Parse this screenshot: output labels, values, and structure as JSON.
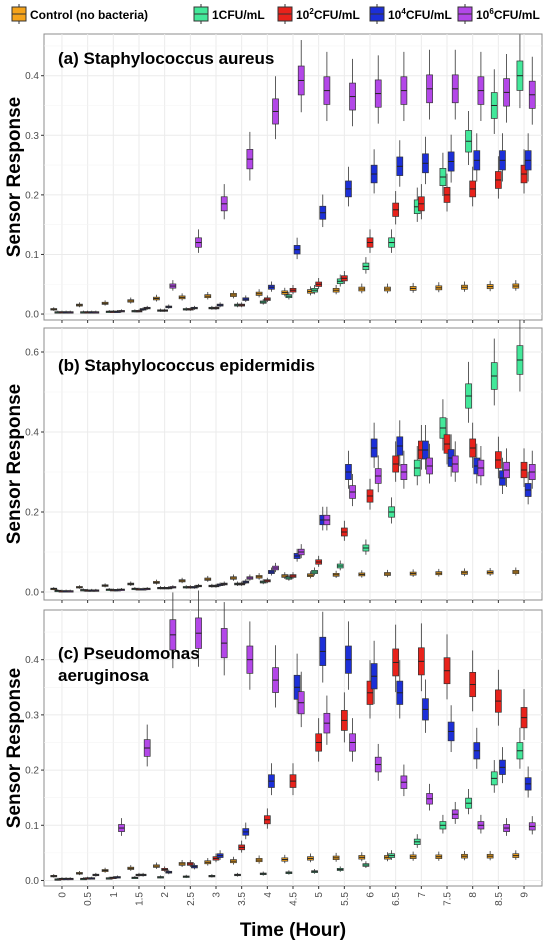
{
  "legend": {
    "items": [
      {
        "label": "Control (no bacteria)",
        "color": "#F5A31A"
      },
      {
        "label": "1CFU/mL",
        "color": "#43E89A"
      },
      {
        "label": "10",
        "sup": "2",
        "suffix": "CFU/mL",
        "color": "#E8221B"
      },
      {
        "label": "10",
        "sup": "4",
        "suffix": "CFU/mL",
        "color": "#1C2FD8"
      },
      {
        "label": "10",
        "sup": "6",
        "suffix": "CFU/mL",
        "color": "#B347E8"
      }
    ]
  },
  "x_axis": {
    "title": "Time (Hour)",
    "ticks": [
      "0",
      "0.5",
      "1",
      "1.5",
      "2",
      "2.5",
      "3",
      "3.5",
      "4",
      "4.5",
      "5",
      "5.5",
      "6",
      "6.5",
      "7",
      "7.5",
      "8",
      "8.5",
      "9"
    ]
  },
  "chart_data": [
    {
      "type": "box",
      "title": "(a) Staphylococcus aureus",
      "ylabel": "Sensor Response",
      "ylim": [
        -0.01,
        0.47
      ],
      "yticks": [
        "0.0",
        "0.1",
        "0.2",
        "0.3",
        "0.4"
      ],
      "x": [
        0,
        0.5,
        1,
        1.5,
        2,
        2.5,
        3,
        3.5,
        4,
        4.5,
        5,
        5.5,
        6,
        6.5,
        7,
        7.5,
        8,
        8.5,
        9
      ],
      "series": [
        {
          "name": "Control (no bacteria)",
          "median": [
            0.008,
            0.015,
            0.018,
            0.022,
            0.026,
            0.028,
            0.03,
            0.032,
            0.034,
            0.036,
            0.038,
            0.04,
            0.042,
            0.042,
            0.043,
            0.044,
            0.045,
            0.046,
            0.047
          ]
        },
        {
          "name": "1CFU/mL",
          "median": [
            0.003,
            0.003,
            0.004,
            0.005,
            0.006,
            0.008,
            0.01,
            0.015,
            0.02,
            0.03,
            0.04,
            0.055,
            0.08,
            0.12,
            0.18,
            0.23,
            0.29,
            0.35,
            0.4
          ]
        },
        {
          "name": "10²CFU/mL",
          "median": [
            0.003,
            0.003,
            0.004,
            0.005,
            0.006,
            0.008,
            0.01,
            0.015,
            0.025,
            0.04,
            0.05,
            0.06,
            0.12,
            0.175,
            0.185,
            0.2,
            0.21,
            0.225,
            0.235
          ]
        },
        {
          "name": "10⁴CFU/mL",
          "median": [
            0.003,
            0.003,
            0.004,
            0.008,
            0.012,
            0.01,
            0.015,
            0.025,
            0.045,
            0.108,
            0.17,
            0.21,
            0.235,
            0.248,
            0.253,
            0.256,
            0.258,
            0.258,
            0.258
          ]
        },
        {
          "name": "10⁶CFU/mL",
          "median": [
            0.003,
            0.003,
            0.005,
            0.01,
            0.047,
            0.12,
            0.185,
            0.26,
            0.34,
            0.392,
            0.375,
            0.365,
            0.37,
            0.375,
            0.378,
            0.378,
            0.375,
            0.372,
            0.368
          ]
        }
      ]
    },
    {
      "type": "box",
      "title": "(b) Staphylococcus epidermidis",
      "ylabel": "Sensor Response",
      "ylim": [
        -0.02,
        0.66
      ],
      "yticks": [
        "0.0",
        "0.2",
        "0.4",
        "0.6"
      ],
      "x": [
        0,
        0.5,
        1,
        1.5,
        2,
        2.5,
        3,
        3.5,
        4,
        4.5,
        5,
        5.5,
        6,
        6.5,
        7,
        7.5,
        8,
        8.5,
        9
      ],
      "series": [
        {
          "name": "Control (no bacteria)",
          "median": [
            0.008,
            0.012,
            0.016,
            0.02,
            0.024,
            0.028,
            0.032,
            0.035,
            0.038,
            0.04,
            0.042,
            0.043,
            0.044,
            0.045,
            0.046,
            0.047,
            0.048,
            0.049,
            0.05
          ]
        },
        {
          "name": "1CFU/mL",
          "median": [
            0.003,
            0.005,
            0.006,
            0.008,
            0.01,
            0.012,
            0.015,
            0.02,
            0.025,
            0.035,
            0.05,
            0.065,
            0.11,
            0.2,
            0.31,
            0.41,
            0.49,
            0.54,
            0.58
          ]
        },
        {
          "name": "10²CFU/mL",
          "median": [
            0.002,
            0.004,
            0.005,
            0.007,
            0.01,
            0.012,
            0.015,
            0.02,
            0.028,
            0.04,
            0.075,
            0.15,
            0.24,
            0.32,
            0.355,
            0.37,
            0.36,
            0.33,
            0.305
          ]
        },
        {
          "name": "10⁴CFU/mL",
          "median": [
            0.002,
            0.004,
            0.005,
            0.007,
            0.01,
            0.012,
            0.018,
            0.025,
            0.05,
            0.09,
            0.18,
            0.3,
            0.36,
            0.365,
            0.355,
            0.335,
            0.315,
            0.285,
            0.255
          ]
        },
        {
          "name": "10⁶CFU/mL",
          "median": [
            0.002,
            0.004,
            0.006,
            0.008,
            0.012,
            0.015,
            0.02,
            0.035,
            0.06,
            0.1,
            0.18,
            0.25,
            0.29,
            0.3,
            0.315,
            0.32,
            0.31,
            0.305,
            0.3
          ]
        }
      ]
    },
    {
      "type": "box",
      "title": "(c) Pseudomonas aeruginosa",
      "ylabel": "Sensor Response",
      "ylim": [
        -0.01,
        0.49
      ],
      "yticks": [
        "0.0",
        "0.1",
        "0.2",
        "0.3",
        "0.4"
      ],
      "x": [
        0,
        0.5,
        1,
        1.5,
        2,
        2.5,
        3,
        3.5,
        4,
        4.5,
        5,
        5.5,
        6,
        6.5,
        7,
        7.5,
        8,
        8.5,
        9
      ],
      "series": [
        {
          "name": "Control (no bacteria)",
          "median": [
            0.008,
            0.013,
            0.018,
            0.022,
            0.026,
            0.03,
            0.033,
            0.035,
            0.037,
            0.038,
            0.04,
            0.041,
            0.042,
            0.042,
            0.043,
            0.043,
            0.044,
            0.044,
            0.045
          ]
        },
        {
          "name": "1CFU/mL",
          "median": [
            0.002,
            0.003,
            0.004,
            0.005,
            0.006,
            0.007,
            0.008,
            0.01,
            0.012,
            0.014,
            0.016,
            0.02,
            0.028,
            0.045,
            0.07,
            0.1,
            0.14,
            0.185,
            0.235
          ]
        },
        {
          "name": "10²CFU/mL",
          "median": [
            0.003,
            0.004,
            0.005,
            0.01,
            0.02,
            0.03,
            0.04,
            0.06,
            0.11,
            0.18,
            0.25,
            0.29,
            0.34,
            0.395,
            0.397,
            0.38,
            0.355,
            0.325,
            0.295
          ]
        },
        {
          "name": "10⁴CFU/mL",
          "median": [
            0.003,
            0.004,
            0.006,
            0.01,
            0.015,
            0.025,
            0.045,
            0.088,
            0.18,
            0.35,
            0.415,
            0.4,
            0.37,
            0.34,
            0.31,
            0.27,
            0.235,
            0.205,
            0.175
          ]
        },
        {
          "name": "10⁶CFU/mL",
          "median": [
            0.003,
            0.01,
            0.095,
            0.24,
            0.445,
            0.448,
            0.43,
            0.4,
            0.363,
            0.322,
            0.285,
            0.25,
            0.21,
            0.178,
            0.148,
            0.12,
            0.1,
            0.095,
            0.098
          ]
        }
      ]
    }
  ]
}
